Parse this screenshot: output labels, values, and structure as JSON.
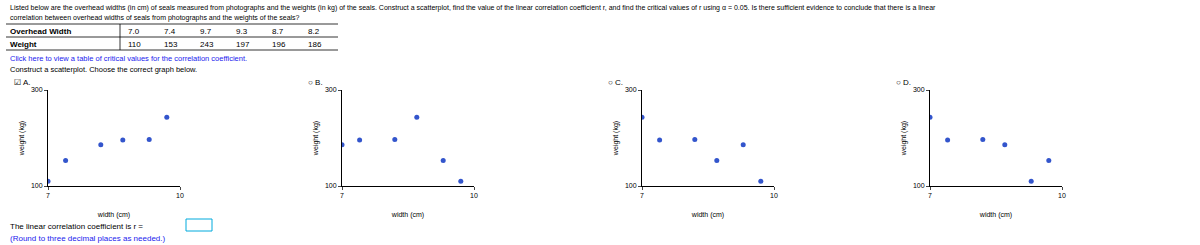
{
  "title": "Listed below are the overhead widths (in cm) of seals measured from photographs and the weights (in kg) of the seals. Construct a scatterplot, find the value of the linear correlation coefficient r, and find the critical values of r using α = 0.05. Is there sufficient evidence to conclude that there is a linear",
  "subtitle": "correlation between overhead widths of seals from photographs and the weights of the seals?",
  "table": {
    "headers": [
      "Overhead Width",
      "7.0",
      "7.4",
      "9.7",
      "9.3",
      "8.7",
      "8.2"
    ],
    "rows": [
      [
        "Weight",
        "110",
        "153",
        "243",
        "197",
        "196",
        "186"
      ]
    ]
  },
  "annotations": [
    "Click here to view a table of critical values for the correlation coefficient.",
    "Construct a scatterplot. Choose the correct graph below.",
    "The linear correlation coefficient is r =",
    "(Round to three decimal places as needed.)"
  ],
  "chart_data": [
    {
      "type": "scatter",
      "title": "☑ A.",
      "x": [
        7.0,
        7.4,
        9.7,
        9.3,
        8.7,
        8.2
      ],
      "values": [
        110,
        153,
        243,
        197,
        196,
        186
      ],
      "color": "#3355cc",
      "xlabel": "width (cm)",
      "ylabel": "weight (kg)",
      "xlim": [
        7,
        10
      ],
      "ylim": [
        100,
        300
      ],
      "xticks": [
        7,
        10
      ],
      "yticks": [
        100,
        300
      ],
      "grid": true
    },
    {
      "type": "scatter",
      "title": "○ B.",
      "x": [
        7.0,
        7.4,
        9.7,
        9.3,
        8.7,
        8.2
      ],
      "values": [
        186,
        196,
        110,
        153,
        243,
        197
      ],
      "color": "#3355cc",
      "xlabel": "width (cm)",
      "ylabel": "weight (kg)",
      "xlim": [
        7,
        10
      ],
      "ylim": [
        100,
        300
      ],
      "xticks": [
        7,
        10
      ],
      "yticks": [
        100,
        300
      ],
      "grid": true
    },
    {
      "type": "scatter",
      "title": "○ C.",
      "x": [
        7.0,
        7.4,
        9.7,
        9.3,
        8.7,
        8.2
      ],
      "values": [
        243,
        196,
        110,
        186,
        153,
        197
      ],
      "color": "#3355cc",
      "xlabel": "width (cm)",
      "ylabel": "weight (kg)",
      "xlim": [
        7,
        10
      ],
      "ylim": [
        100,
        300
      ],
      "xticks": [
        7,
        10
      ],
      "yticks": [
        100,
        300
      ],
      "grid": true
    },
    {
      "type": "scatter",
      "title": "○ D.",
      "x": [
        7.0,
        7.4,
        9.7,
        9.3,
        8.7,
        8.2
      ],
      "values": [
        243,
        196,
        153,
        110,
        186,
        197
      ],
      "color": "#3355cc",
      "xlabel": "width (cm)",
      "ylabel": "weight (kg)",
      "xlim": [
        7,
        10
      ],
      "ylim": [
        100,
        300
      ],
      "xticks": [
        7,
        10
      ],
      "yticks": [
        100,
        300
      ],
      "grid": true
    }
  ]
}
